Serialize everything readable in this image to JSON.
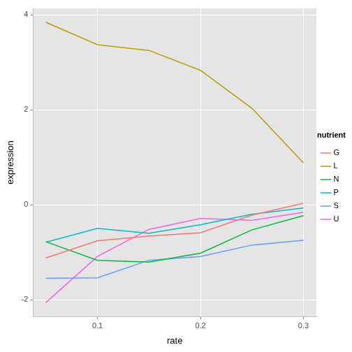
{
  "chart_data": {
    "type": "line",
    "x_label": "rate",
    "y_label": "expression",
    "legend_title": "nutrient",
    "x": [
      0.05,
      0.1,
      0.15,
      0.2,
      0.25,
      0.3
    ],
    "series": [
      {
        "name": "G",
        "color": "#F8766D",
        "values": [
          -1.12,
          -0.76,
          -0.66,
          -0.59,
          -0.22,
          0.03
        ]
      },
      {
        "name": "L",
        "color": "#B79F00",
        "values": [
          3.84,
          3.37,
          3.25,
          2.83,
          2.03,
          0.88
        ]
      },
      {
        "name": "N",
        "color": "#00BA38",
        "values": [
          -0.78,
          -1.17,
          -1.21,
          -1.02,
          -0.53,
          -0.23
        ]
      },
      {
        "name": "P",
        "color": "#00BFC4",
        "values": [
          -0.79,
          -0.5,
          -0.6,
          -0.42,
          -0.2,
          -0.07
        ]
      },
      {
        "name": "S",
        "color": "#619CFF",
        "values": [
          -1.55,
          -1.54,
          -1.17,
          -1.09,
          -0.85,
          -0.75
        ]
      },
      {
        "name": "U",
        "color": "#F564E3",
        "values": [
          -2.06,
          -1.09,
          -0.52,
          -0.29,
          -0.33,
          -0.16
        ]
      }
    ],
    "xlim": [
      0.0375,
      0.3125
    ],
    "xticks": [
      0.1,
      0.2,
      0.3
    ],
    "ylim": [
      -2.355,
      4.135
    ],
    "yticks": [
      -2,
      0,
      2,
      4
    ],
    "grid": true,
    "legend": "right"
  }
}
